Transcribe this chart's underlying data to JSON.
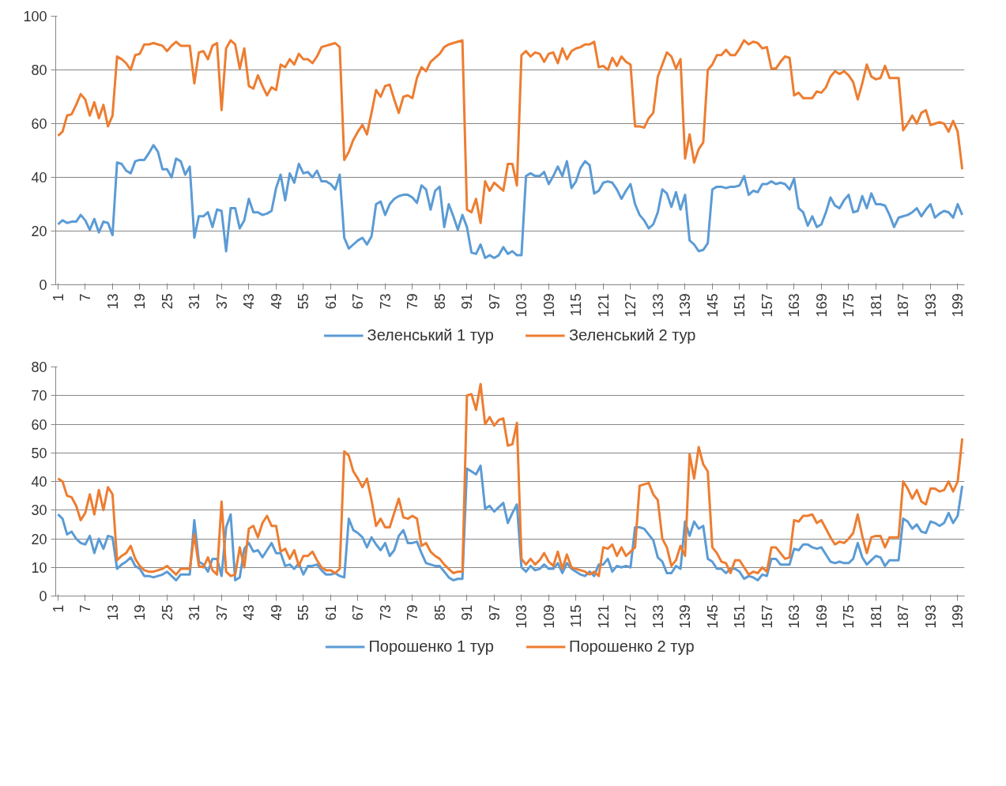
{
  "chart_data": [
    {
      "type": "line",
      "x": [
        1,
        2,
        3,
        4,
        5,
        6,
        7,
        8,
        9,
        10,
        11,
        12,
        13,
        14,
        15,
        16,
        17,
        18,
        19,
        20,
        21,
        22,
        23,
        24,
        25,
        26,
        27,
        28,
        29,
        30,
        31,
        32,
        33,
        34,
        35,
        36,
        37,
        38,
        39,
        40,
        41,
        42,
        43,
        44,
        45,
        46,
        47,
        48,
        49,
        50,
        51,
        52,
        53,
        54,
        55,
        56,
        57,
        58,
        59,
        60,
        61,
        62,
        63,
        64,
        65,
        66,
        67,
        68,
        69,
        70,
        71,
        72,
        73,
        74,
        75,
        76,
        77,
        78,
        79,
        80,
        81,
        82,
        83,
        84,
        85,
        86,
        87,
        88,
        89,
        90,
        91,
        92,
        93,
        94,
        95,
        96,
        97,
        98,
        99,
        100,
        101,
        102,
        103,
        104,
        105,
        106,
        107,
        108,
        109,
        110,
        111,
        112,
        113,
        114,
        115,
        116,
        117,
        118,
        119,
        120,
        121,
        122,
        123,
        124,
        125,
        126,
        127,
        128,
        129,
        130,
        131,
        132,
        133,
        134,
        135,
        136,
        137,
        138,
        139,
        140,
        141,
        142,
        143,
        144,
        145,
        146,
        147,
        148,
        149,
        150,
        151,
        152,
        153,
        154,
        155,
        156,
        157,
        158,
        159,
        160,
        161,
        162,
        163,
        164,
        165,
        166,
        167,
        168,
        169,
        170,
        171,
        172,
        173,
        174,
        175,
        176,
        177,
        178,
        179,
        180,
        181,
        182,
        183,
        184,
        185,
        186,
        187,
        188,
        189,
        190,
        191,
        192,
        193,
        194,
        195,
        196,
        197,
        198,
        199,
        200
      ],
      "xlim": [
        0.5,
        200.5
      ],
      "xticks": [
        1,
        7,
        13,
        19,
        25,
        31,
        37,
        43,
        49,
        55,
        61,
        67,
        73,
        79,
        85,
        91,
        97,
        103,
        109,
        115,
        121,
        127,
        133,
        139,
        145,
        151,
        157,
        163,
        169,
        175,
        181,
        187,
        193,
        199
      ],
      "ylim": [
        0,
        100
      ],
      "yticks": [
        0,
        20,
        40,
        60,
        80,
        100
      ],
      "grid": "y",
      "legend": "bottom",
      "line_style": "solid",
      "marker": "none",
      "series": [
        {
          "name": "Зеленський 1 тур",
          "color": "#5b9bd5",
          "values": [
            22.5,
            24,
            23,
            23.5,
            23.5,
            26,
            24,
            20.5,
            24.5,
            19.5,
            23.5,
            23,
            18.5,
            45.5,
            45,
            42.5,
            41.5,
            46,
            46.5,
            46.5,
            49,
            52,
            49.5,
            43,
            43,
            40,
            47,
            46,
            41,
            44,
            17.5,
            25.5,
            25.5,
            27,
            21.5,
            28,
            27.5,
            12.5,
            28.5,
            28.5,
            21,
            24,
            32,
            27,
            27,
            26,
            26.5,
            27.5,
            36,
            41,
            31.5,
            41.5,
            38,
            45,
            41.5,
            42,
            40,
            42.5,
            38.5,
            38.5,
            37.5,
            35.5,
            41,
            17.5,
            13.5,
            15,
            16.5,
            17.5,
            15,
            18,
            30,
            31,
            26,
            30,
            32,
            33,
            33.5,
            33.5,
            32.5,
            30.5,
            37,
            35.5,
            28,
            35,
            36.5,
            21.5,
            30,
            25.5,
            20.5,
            26,
            21.5,
            12,
            11.5,
            15,
            10,
            11,
            10,
            11,
            14,
            11.5,
            12.5,
            11,
            11,
            40.5,
            41.5,
            40.5,
            40.5,
            42,
            37.5,
            40.5,
            44,
            40.5,
            46,
            36,
            38.5,
            43.5,
            46,
            44.5,
            34,
            35,
            38,
            38.5,
            38,
            35.5,
            32,
            35,
            37.5,
            30,
            26,
            24,
            21,
            22.5,
            27,
            35.5,
            34,
            29,
            34.5,
            28,
            33.5,
            16.5,
            15,
            12.5,
            13,
            15.5,
            35.5,
            36.5,
            36.5,
            36,
            36.5,
            36.5,
            37,
            40.5,
            33.5,
            35,
            34.5,
            37.5,
            37.5,
            38.5,
            37.5,
            38,
            37.5,
            35.5,
            39.5,
            28.5,
            27,
            22,
            25.5,
            21.5,
            22.5,
            27,
            32.5,
            29.5,
            28.5,
            31.5,
            33.5,
            27,
            27.5,
            33,
            28.5,
            34,
            30,
            30,
            29.5,
            26,
            21.5,
            25,
            25.5,
            26,
            27,
            28.5,
            25.5,
            28,
            30,
            25,
            26.5,
            27.5,
            27,
            25,
            30,
            26
          ]
        },
        {
          "name": "Зеленський 2 тур",
          "color": "#ed7d31",
          "values": [
            55.5,
            57,
            63,
            63.5,
            67,
            71,
            69,
            63,
            68,
            62,
            67,
            59,
            63,
            85,
            84,
            82.5,
            80,
            85.5,
            86,
            89.5,
            89.5,
            90,
            89.5,
            89,
            87,
            89,
            90.5,
            89,
            89,
            89,
            75,
            86.5,
            87,
            84,
            89,
            90,
            65,
            88,
            91,
            89.5,
            80.5,
            88,
            74,
            73,
            78,
            74,
            70.5,
            73.5,
            72.5,
            82,
            81,
            84,
            82,
            86,
            84,
            84,
            82.5,
            85,
            88.5,
            89,
            89.5,
            90,
            88.5,
            46.5,
            49.5,
            54,
            57,
            59.5,
            56,
            64,
            72.5,
            70,
            74,
            74.5,
            69,
            64,
            70,
            70.5,
            69.5,
            77,
            81,
            79.5,
            83,
            84.5,
            86,
            88.5,
            89.5,
            90,
            90.5,
            91,
            28,
            27,
            32,
            23,
            38.5,
            35,
            38,
            36.5,
            35,
            45,
            45,
            37,
            85.5,
            87,
            85,
            86.5,
            86,
            83,
            86,
            86.5,
            82.5,
            88,
            84,
            87,
            88,
            88.5,
            89.5,
            89.5,
            90.5,
            81,
            81.5,
            80,
            84.5,
            81.5,
            85,
            83,
            82,
            59,
            59,
            58.5,
            62,
            64,
            77.5,
            82,
            86.5,
            85,
            80.5,
            84,
            47,
            56,
            45.5,
            50.5,
            53,
            80,
            82,
            85.5,
            85.5,
            87.5,
            85.5,
            85.5,
            88,
            91,
            89.5,
            90.5,
            90,
            88,
            88.5,
            80.5,
            80.5,
            83,
            85,
            84.5,
            70.5,
            71.5,
            69.5,
            69.5,
            69.5,
            72,
            71.5,
            73.5,
            77.5,
            79.5,
            78.5,
            79.5,
            78,
            75.5,
            69,
            75,
            82,
            77.5,
            76.5,
            77,
            81.5,
            77,
            77,
            77,
            57.5,
            60,
            63,
            60,
            64,
            65,
            59.5,
            60,
            60.5,
            60,
            57,
            61,
            57,
            43
          ]
        }
      ]
    },
    {
      "type": "line",
      "x": [
        1,
        2,
        3,
        4,
        5,
        6,
        7,
        8,
        9,
        10,
        11,
        12,
        13,
        14,
        15,
        16,
        17,
        18,
        19,
        20,
        21,
        22,
        23,
        24,
        25,
        26,
        27,
        28,
        29,
        30,
        31,
        32,
        33,
        34,
        35,
        36,
        37,
        38,
        39,
        40,
        41,
        42,
        43,
        44,
        45,
        46,
        47,
        48,
        49,
        50,
        51,
        52,
        53,
        54,
        55,
        56,
        57,
        58,
        59,
        60,
        61,
        62,
        63,
        64,
        65,
        66,
        67,
        68,
        69,
        70,
        71,
        72,
        73,
        74,
        75,
        76,
        77,
        78,
        79,
        80,
        81,
        82,
        83,
        84,
        85,
        86,
        87,
        88,
        89,
        90,
        91,
        92,
        93,
        94,
        95,
        96,
        97,
        98,
        99,
        100,
        101,
        102,
        103,
        104,
        105,
        106,
        107,
        108,
        109,
        110,
        111,
        112,
        113,
        114,
        115,
        116,
        117,
        118,
        119,
        120,
        121,
        122,
        123,
        124,
        125,
        126,
        127,
        128,
        129,
        130,
        131,
        132,
        133,
        134,
        135,
        136,
        137,
        138,
        139,
        140,
        141,
        142,
        143,
        144,
        145,
        146,
        147,
        148,
        149,
        150,
        151,
        152,
        153,
        154,
        155,
        156,
        157,
        158,
        159,
        160,
        161,
        162,
        163,
        164,
        165,
        166,
        167,
        168,
        169,
        170,
        171,
        172,
        173,
        174,
        175,
        176,
        177,
        178,
        179,
        180,
        181,
        182,
        183,
        184,
        185,
        186,
        187,
        188,
        189,
        190,
        191,
        192,
        193,
        194,
        195,
        196,
        197,
        198,
        199,
        200
      ],
      "xlim": [
        0.5,
        200.5
      ],
      "xticks": [
        1,
        7,
        13,
        19,
        25,
        31,
        37,
        43,
        49,
        55,
        61,
        67,
        73,
        79,
        85,
        91,
        97,
        103,
        109,
        115,
        121,
        127,
        133,
        139,
        145,
        151,
        157,
        163,
        169,
        175,
        181,
        187,
        193,
        199
      ],
      "ylim": [
        0,
        80
      ],
      "yticks": [
        0,
        10,
        20,
        30,
        40,
        50,
        60,
        70,
        80
      ],
      "grid": "y",
      "legend": "bottom",
      "line_style": "solid",
      "marker": "none",
      "series": [
        {
          "name": "Порошенко 1 тур",
          "color": "#5b9bd5",
          "values": [
            28.5,
            27,
            21.5,
            22.5,
            20,
            18.5,
            18,
            21,
            15,
            20,
            16.5,
            21,
            20.5,
            9.5,
            11,
            12,
            13.5,
            10.5,
            9.5,
            7,
            7,
            6.5,
            7,
            7.5,
            8.5,
            7,
            5.5,
            7.5,
            7.5,
            7.5,
            26.5,
            12,
            11,
            8.5,
            13,
            13,
            7,
            24,
            28.5,
            5.5,
            6.5,
            16.5,
            18.5,
            15.5,
            16,
            13.5,
            16,
            18.5,
            15,
            15,
            10.5,
            11,
            9.5,
            11.5,
            7.5,
            10.5,
            10.5,
            11,
            9,
            7.5,
            7.5,
            8,
            7,
            6.5,
            27,
            23,
            22,
            20.5,
            17,
            20.5,
            18,
            16,
            18.5,
            14,
            16,
            21,
            23,
            18.5,
            18.5,
            19,
            15,
            11.5,
            11,
            10.5,
            10.5,
            8.5,
            6.5,
            5.5,
            6,
            6,
            44.5,
            43.5,
            42.5,
            45.5,
            30.5,
            31.5,
            29.5,
            31,
            32.5,
            25.5,
            29,
            32,
            10,
            8.5,
            10.5,
            9,
            9.5,
            11,
            9.5,
            9.5,
            11.5,
            8,
            11.5,
            9.5,
            8.5,
            7.5,
            7,
            8.5,
            7,
            11,
            11,
            13,
            8.5,
            10.5,
            10,
            10.5,
            10,
            24,
            24,
            23.5,
            21.5,
            19.5,
            13.5,
            12,
            8,
            8,
            10.5,
            9.5,
            26,
            21,
            26,
            23.5,
            24.5,
            13,
            12,
            9.5,
            9.5,
            8,
            9.5,
            9.5,
            8.5,
            6,
            7,
            6.5,
            5.5,
            7.5,
            7,
            13,
            13,
            11,
            11,
            11,
            16.5,
            16,
            18,
            18,
            17,
            16.5,
            17,
            14.5,
            12,
            11.5,
            12,
            11.5,
            11.5,
            13,
            18.5,
            13.5,
            11,
            12.5,
            14,
            13.5,
            10.5,
            12.5,
            12.5,
            12.5,
            27,
            26,
            23.5,
            25,
            22.5,
            22,
            26,
            25.5,
            24.5,
            25.5,
            29,
            25.5,
            28,
            38.5
          ]
        },
        {
          "name": "Порошенко 2 тур",
          "color": "#ed7d31",
          "values": [
            41,
            40,
            35,
            34.5,
            31.5,
            26.5,
            29,
            35.5,
            28.5,
            37,
            30,
            38,
            35.5,
            12.5,
            14,
            15,
            17.5,
            13,
            10.5,
            9,
            8.5,
            8.5,
            9,
            9.5,
            10.5,
            9,
            7.5,
            9.5,
            9.5,
            9.5,
            21.5,
            10.5,
            10,
            13.5,
            9,
            7.5,
            33,
            8.5,
            7,
            7.5,
            17,
            10,
            23.5,
            24.5,
            20.5,
            25.5,
            28,
            24.5,
            24.5,
            15.5,
            16.5,
            13,
            16,
            10.5,
            14,
            14,
            15.5,
            12.5,
            10,
            9,
            9,
            8,
            9.5,
            50.5,
            49,
            43.5,
            41,
            38,
            41,
            33.5,
            24.5,
            27,
            24,
            24,
            29,
            34,
            27.5,
            27,
            28,
            27,
            17.5,
            18.5,
            15.5,
            14,
            13,
            11,
            9.5,
            8,
            8.5,
            8.5,
            70,
            70.5,
            65,
            74,
            60,
            62.5,
            59.5,
            61.5,
            62,
            52.5,
            53,
            60.5,
            13,
            11,
            13,
            11,
            12.5,
            15,
            12,
            10.5,
            15.5,
            9.5,
            14.5,
            10,
            9.5,
            9,
            8.5,
            7.5,
            8.5,
            7,
            17,
            16.5,
            18,
            14,
            17,
            14,
            15.5,
            17,
            38.5,
            39,
            39.5,
            35.5,
            33.5,
            20,
            17,
            10.5,
            12.5,
            17.5,
            14,
            49.5,
            41,
            52,
            46,
            43.5,
            17,
            15,
            12,
            11.5,
            8,
            12.5,
            12.5,
            10,
            7.5,
            8.5,
            8,
            10,
            8.5,
            17,
            17,
            15,
            13,
            13.5,
            26.5,
            26,
            28,
            28,
            28.5,
            25.5,
            26.5,
            23.5,
            20.5,
            18,
            19,
            18.5,
            20,
            22,
            28.5,
            21,
            15,
            20.5,
            21,
            21,
            17,
            20.5,
            20.5,
            20.5,
            40,
            37.5,
            34,
            37,
            33,
            32,
            37.5,
            37.5,
            36.5,
            37,
            40,
            36.5,
            40,
            55
          ]
        }
      ]
    }
  ]
}
